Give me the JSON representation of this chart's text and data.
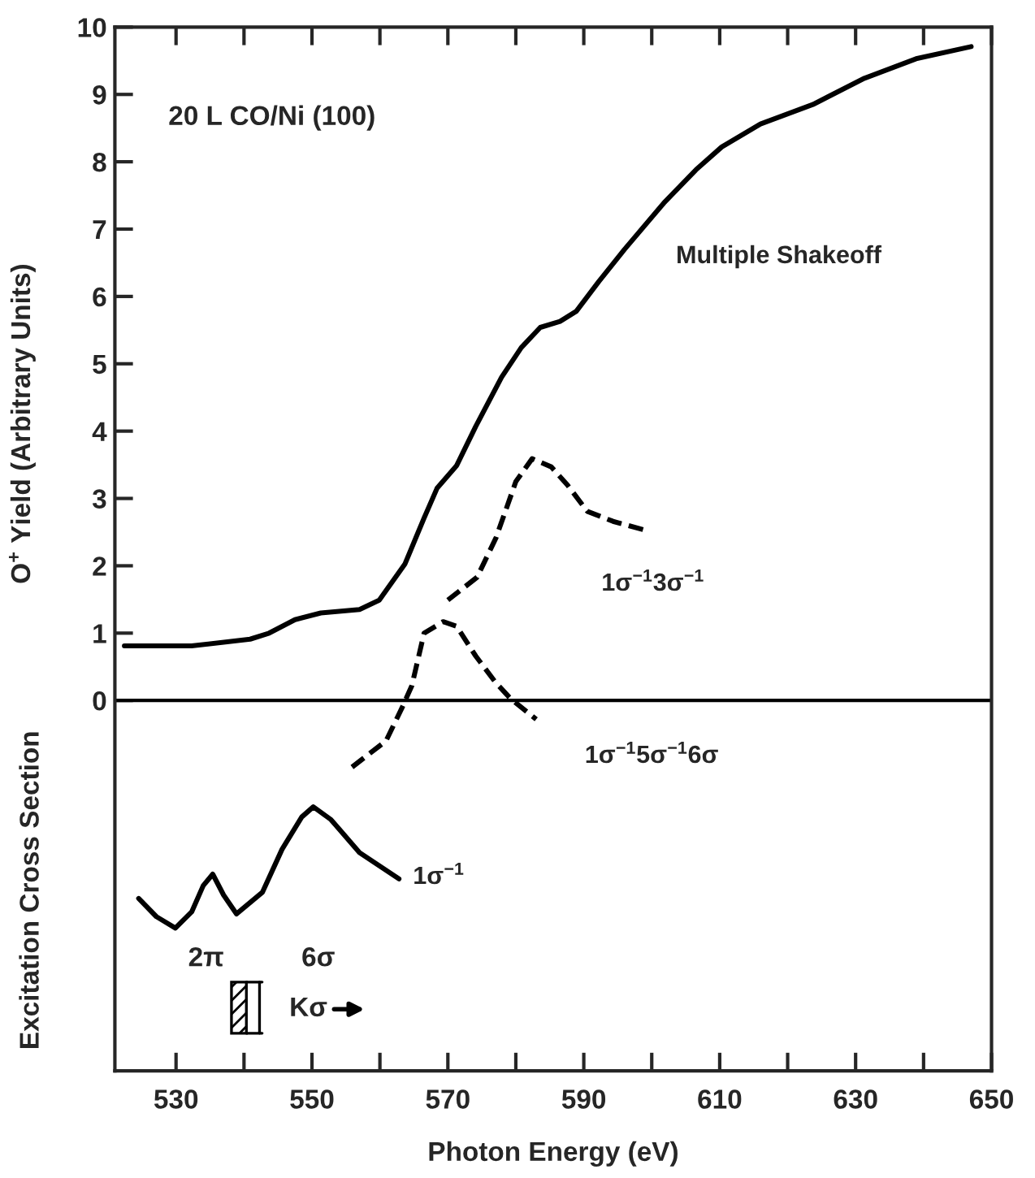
{
  "chart_data": {
    "type": "line",
    "xlabel": "Photon Energy (eV)",
    "ylabel": "O$^{+}$ Yield (Arbitrary Units)",
    "annotations": [
      "20 L CO/Ni (100)",
      "2π",
      "6σ",
      "Kσ",
      "Excitation Cross Section"
    ],
    "series": [
      {
        "name": "Multiple Shakeoff",
        "color": "#000000",
        "line_style": "solid",
        "x": [
          522.4,
          532.3,
          540.9,
          543.7,
          547.5,
          551.3,
          557.0,
          559.9,
          563.7,
          566.5,
          568.4,
          571.3,
          574.1,
          577.9,
          580.8,
          583.6,
          586.5,
          588.9,
          592.2,
          596.0,
          601.8,
          606.5,
          610.3,
          616.0,
          623.7,
          631.3,
          638.9,
          647.0
        ],
        "values": [
          0.81,
          0.81,
          0.91,
          1.0,
          1.2,
          1.3,
          1.35,
          1.49,
          2.03,
          2.71,
          3.15,
          3.49,
          4.07,
          4.8,
          5.24,
          5.54,
          5.63,
          5.78,
          6.22,
          6.7,
          7.39,
          7.88,
          8.22,
          8.56,
          8.85,
          9.24,
          9.53,
          9.71
        ]
      },
      {
        "name": "1σ$^{−1}$3σ$^{−1}$",
        "color": "#000000",
        "line_style": "dashed",
        "x": [
          570.0,
          574.3,
          577.1,
          580.0,
          582.4,
          585.2,
          587.6,
          590.5,
          594.3,
          599.0
        ],
        "values": [
          1.49,
          1.83,
          2.42,
          3.25,
          3.59,
          3.47,
          3.2,
          2.81,
          2.66,
          2.53
        ]
      },
      {
        "name": "1σ$^{−1}$5σ$^{−1}$6σ",
        "color": "#000000",
        "line_style": "dashed",
        "x": [
          555.9,
          560.9,
          563.2,
          564.7,
          566.5,
          569.3,
          571.3,
          574.1,
          577.0,
          579.2,
          583.0
        ],
        "values": [
          -0.99,
          -0.6,
          -0.12,
          0.22,
          1.0,
          1.17,
          1.1,
          0.66,
          0.27,
          0.03,
          -0.28
        ]
      },
      {
        "name": "1σ$^{−1}$",
        "color": "#000000",
        "line_style": "solid",
        "x": [
          524.5,
          527.1,
          529.9,
          532.3,
          534.0,
          535.4,
          537.0,
          538.9,
          542.7,
          545.6,
          548.5,
          550.2,
          552.8,
          557.0,
          562.8
        ],
        "values": [
          -2.94,
          -3.21,
          -3.38,
          -3.14,
          -2.75,
          -2.58,
          -2.89,
          -3.17,
          -2.85,
          -2.21,
          -1.73,
          -1.58,
          -1.77,
          -2.26,
          -2.65
        ]
      }
    ],
    "xlim": [
      521,
      650
    ],
    "xticks": [
      530,
      {
        "value": 540,
        "label": null
      },
      550,
      {
        "value": 560,
        "label": null
      },
      570,
      {
        "value": 580,
        "label": null
      },
      590,
      {
        "value": 600,
        "label": null
      },
      610,
      {
        "value": 620,
        "label": null
      },
      630,
      {
        "value": 640,
        "label": null
      },
      650
    ],
    "ylim": [
      -5.5,
      10
    ],
    "yticks": [
      0,
      1,
      2,
      3,
      4,
      5,
      6,
      7,
      8,
      9,
      10
    ],
    "ref_lines": [
      {
        "axis": "y",
        "value": 0,
        "label": null,
        "color": "#000000"
      }
    ],
    "legend": false,
    "grid": false
  }
}
